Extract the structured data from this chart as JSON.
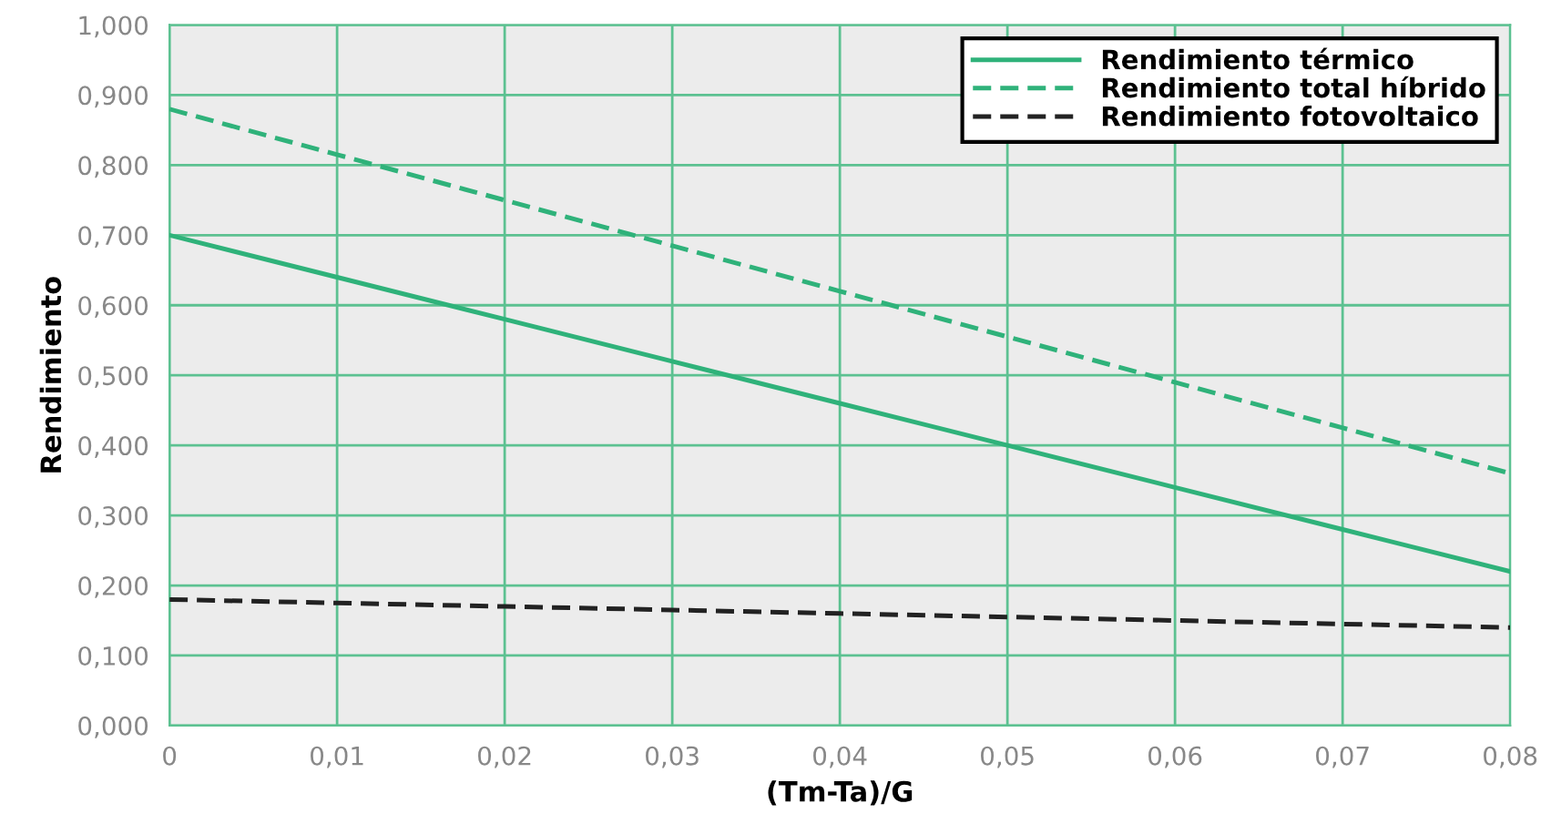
{
  "chart_data": {
    "type": "line",
    "xlabel": "(Tm-Ta)/G",
    "ylabel": "Rendimiento",
    "x": [
      0,
      0.01,
      0.02,
      0.03,
      0.04,
      0.05,
      0.06,
      0.07,
      0.08
    ],
    "series": [
      {
        "name": "Rendimiento térmico",
        "color": "#2fb27a",
        "line_style": "solid",
        "values": [
          0.7,
          0.64,
          0.58,
          0.52,
          0.46,
          0.4,
          0.34,
          0.28,
          0.22
        ]
      },
      {
        "name": "Rendimiento total híbrido",
        "color": "#2fb27a",
        "line_style": "dashed",
        "values": [
          0.88,
          0.815,
          0.75,
          0.685,
          0.62,
          0.555,
          0.49,
          0.425,
          0.36
        ]
      },
      {
        "name": "Rendimiento fotovoltaico",
        "color": "#222222",
        "line_style": "dashed",
        "values": [
          0.18,
          0.175,
          0.17,
          0.165,
          0.16,
          0.155,
          0.15,
          0.145,
          0.14
        ]
      }
    ],
    "xlim": [
      0,
      0.08
    ],
    "xticks": [
      0,
      {
        "value": 0.01,
        "label": "0,01"
      },
      {
        "value": 0.02,
        "label": "0,02"
      },
      {
        "value": 0.03,
        "label": "0,03"
      },
      {
        "value": 0.04,
        "label": "0,04"
      },
      {
        "value": 0.05,
        "label": "0,05"
      },
      {
        "value": 0.06,
        "label": "0,06"
      },
      {
        "value": 0.07,
        "label": "0,07"
      },
      {
        "value": 0.08,
        "label": "0,08"
      }
    ],
    "ylim": [
      0,
      1
    ],
    "yticks": [
      {
        "value": 0,
        "label": "0,000"
      },
      {
        "value": 0.1,
        "label": "0,100"
      },
      {
        "value": 0.2,
        "label": "0,200"
      },
      {
        "value": 0.3,
        "label": "0,300"
      },
      {
        "value": 0.4,
        "label": "0,400"
      },
      {
        "value": 0.5,
        "label": "0,500"
      },
      {
        "value": 0.6,
        "label": "0,600"
      },
      {
        "value": 0.7,
        "label": "0,700"
      },
      {
        "value": 0.8,
        "label": "0,800"
      },
      {
        "value": 0.9,
        "label": "0,900"
      },
      {
        "value": 1,
        "label": "1,000"
      }
    ],
    "grid": true,
    "legend": "top right"
  }
}
